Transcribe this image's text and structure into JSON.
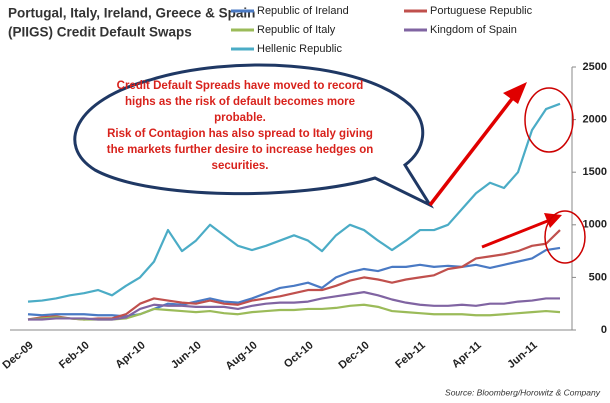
{
  "chart_data": {
    "type": "line",
    "title_lines": [
      "Portugal, Italy, Ireland, Greece & Spain",
      "(PIIGS) Credit Default Swaps"
    ],
    "categories": [
      "Dec-09",
      null,
      null,
      null,
      "Feb-10",
      null,
      null,
      null,
      "Apr-10",
      null,
      null,
      null,
      "Jun-10",
      null,
      null,
      null,
      "Aug-10",
      null,
      null,
      null,
      "Oct-10",
      null,
      null,
      null,
      "Dec-10",
      null,
      null,
      null,
      "Feb-11",
      null,
      null,
      null,
      "Apr-11",
      null,
      null,
      null,
      "Jun-11",
      null,
      null
    ],
    "series": [
      {
        "name": "Republic of Ireland",
        "color": "#4a7ac4",
        "values": [
          150,
          140,
          150,
          150,
          150,
          140,
          140,
          130,
          150,
          200,
          250,
          240,
          270,
          300,
          270,
          260,
          300,
          350,
          400,
          420,
          450,
          400,
          500,
          550,
          580,
          560,
          600,
          600,
          620,
          600,
          610,
          600,
          620,
          590,
          620,
          650,
          680,
          760,
          780
        ]
      },
      {
        "name": "Portuguese Republic",
        "color": "#c0504d",
        "values": [
          100,
          120,
          130,
          110,
          100,
          110,
          110,
          150,
          250,
          300,
          280,
          260,
          250,
          280,
          250,
          240,
          280,
          300,
          320,
          350,
          380,
          380,
          420,
          470,
          500,
          480,
          450,
          480,
          500,
          520,
          580,
          600,
          680,
          700,
          720,
          750,
          800,
          820,
          950
        ]
      },
      {
        "name": "Republic of Italy",
        "color": "#9bbb59",
        "values": [
          100,
          110,
          120,
          110,
          100,
          100,
          100,
          110,
          150,
          200,
          190,
          180,
          170,
          180,
          160,
          150,
          170,
          180,
          190,
          190,
          200,
          200,
          210,
          230,
          240,
          220,
          180,
          170,
          160,
          150,
          150,
          150,
          140,
          140,
          150,
          160,
          170,
          180,
          170
        ]
      },
      {
        "name": "Kingdom of Spain",
        "color": "#8064a2",
        "values": [
          100,
          100,
          110,
          110,
          110,
          100,
          100,
          120,
          200,
          240,
          230,
          230,
          220,
          220,
          220,
          200,
          230,
          250,
          260,
          260,
          270,
          300,
          320,
          340,
          360,
          330,
          290,
          260,
          240,
          230,
          230,
          240,
          230,
          250,
          250,
          270,
          280,
          300,
          300
        ]
      },
      {
        "name": "Hellenic Republic",
        "color": "#4bacc6",
        "values": [
          270,
          280,
          300,
          330,
          350,
          380,
          330,
          420,
          500,
          650,
          950,
          750,
          850,
          1000,
          900,
          800,
          760,
          800,
          850,
          900,
          850,
          750,
          900,
          1000,
          950,
          850,
          760,
          850,
          950,
          950,
          1000,
          1150,
          1300,
          1400,
          1350,
          1500,
          1900,
          2100,
          2150
        ]
      }
    ],
    "ylim": [
      0,
      2500
    ],
    "yticks": [
      0,
      500,
      1000,
      1500,
      2000,
      2500
    ],
    "grid": false,
    "annotation_lines": [
      "Credit Default Spreads have moved to record",
      "highs as the risk of default becomes more",
      "probable.",
      "Risk of Contagion has also spread to Italy giving",
      "the markets further desire to increase hedges on",
      "securities."
    ],
    "source": "Source: Bloomberg/Horowitz  & Company"
  }
}
